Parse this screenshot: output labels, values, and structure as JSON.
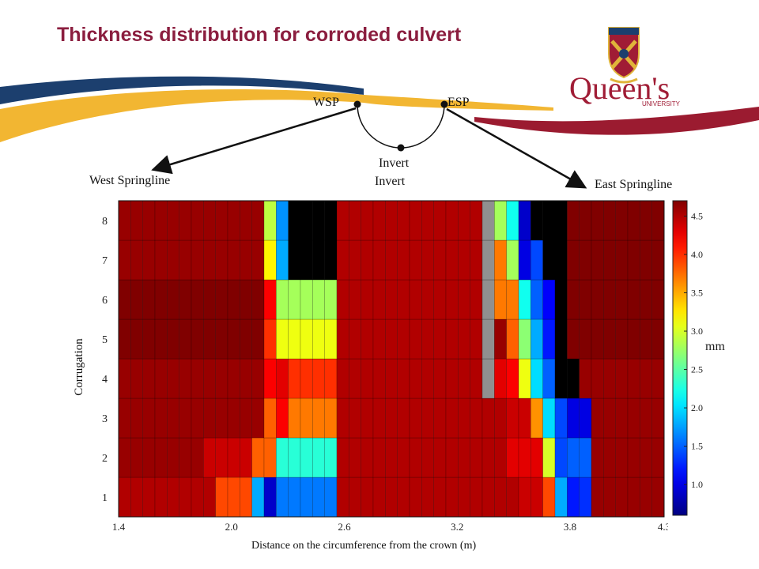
{
  "slide": {
    "title": "Thickness distribution for corroded culvert"
  },
  "logo": {
    "wordmark": "Queen's",
    "subtext": "UNIVERSITY"
  },
  "diagram": {
    "wsp_label": "WSP",
    "esp_label": "ESP",
    "invert_label": "Invert",
    "invert_label_2": "Invert",
    "west_label": "West Springline",
    "east_label": "East Springline"
  },
  "colors": {
    "brand_maroon": "#8b1e3f",
    "brand_navy": "#1c3f6e",
    "brand_gold": "#f2b632"
  },
  "chart_data": {
    "type": "heatmap",
    "title": "",
    "xlabel": "Distance on the circumference from the crown  (m)",
    "ylabel": "Corrugation",
    "xlim": [
      1.4,
      4.3
    ],
    "x_ticks": [
      "1.4",
      "2.0",
      "2.6",
      "3.2",
      "3.8",
      "4.3"
    ],
    "y_categories": [
      "1",
      "2",
      "3",
      "4",
      "5",
      "6",
      "7",
      "8"
    ],
    "colorbar": {
      "label": "mm",
      "range": [
        0.6,
        4.7
      ],
      "ticks": [
        "1.0",
        "1.5",
        "2.0",
        "2.5",
        "3.0",
        "3.5",
        "4.0",
        "4.5"
      ]
    },
    "columns": 45,
    "missing_value_note": "null = no data (black), -1 = grey cells",
    "rows_bottom_to_top": [
      [
        4.5,
        4.5,
        4.5,
        4.5,
        4.5,
        4.5,
        4.5,
        4.5,
        3.9,
        3.9,
        3.9,
        1.8,
        0.9,
        1.6,
        1.6,
        1.6,
        1.6,
        1.6,
        4.5,
        4.5,
        4.5,
        4.5,
        4.5,
        4.5,
        4.5,
        4.5,
        4.5,
        4.5,
        4.5,
        4.5,
        4.5,
        4.5,
        4.5,
        4.4,
        4.4,
        3.9,
        1.8,
        1.2,
        1.3,
        4.6,
        4.6,
        4.6,
        4.6,
        4.6,
        4.6
      ],
      [
        4.6,
        4.6,
        4.6,
        4.6,
        4.6,
        4.6,
        4.6,
        4.4,
        4.4,
        4.4,
        4.4,
        3.8,
        3.8,
        2.3,
        2.3,
        2.3,
        2.3,
        2.3,
        4.5,
        4.5,
        4.5,
        4.5,
        4.5,
        4.5,
        4.5,
        4.5,
        4.5,
        4.5,
        4.5,
        4.5,
        4.5,
        4.5,
        4.3,
        4.3,
        4.3,
        3.0,
        1.4,
        1.5,
        1.5,
        4.6,
        4.6,
        4.6,
        4.6,
        4.6,
        4.6
      ],
      [
        4.6,
        4.6,
        4.6,
        4.6,
        4.6,
        4.6,
        4.6,
        4.6,
        4.6,
        4.6,
        4.6,
        4.6,
        3.8,
        4.2,
        3.7,
        3.7,
        3.7,
        3.7,
        4.5,
        4.5,
        4.5,
        4.5,
        4.5,
        4.5,
        4.5,
        4.5,
        4.5,
        4.5,
        4.5,
        4.5,
        4.5,
        4.5,
        4.4,
        4.4,
        3.6,
        2.0,
        1.4,
        1.0,
        1.0,
        4.6,
        4.6,
        4.6,
        4.6,
        4.6,
        4.6
      ],
      [
        4.6,
        4.6,
        4.6,
        4.6,
        4.6,
        4.6,
        4.6,
        4.6,
        4.6,
        4.6,
        4.6,
        4.6,
        4.2,
        4.3,
        4.0,
        4.0,
        4.0,
        4.0,
        4.5,
        4.5,
        4.5,
        4.5,
        4.5,
        4.5,
        4.5,
        4.5,
        4.5,
        4.5,
        4.5,
        4.5,
        -1,
        4.3,
        4.2,
        3.1,
        2.0,
        1.5,
        null,
        null,
        4.6,
        4.6,
        4.6,
        4.6,
        4.6,
        4.6,
        4.6
      ],
      [
        4.7,
        4.7,
        4.7,
        4.7,
        4.7,
        4.7,
        4.7,
        4.7,
        4.7,
        4.7,
        4.7,
        4.7,
        4.0,
        3.1,
        3.1,
        3.1,
        3.1,
        3.1,
        4.5,
        4.5,
        4.5,
        4.5,
        4.5,
        4.5,
        4.5,
        4.5,
        4.5,
        4.5,
        4.5,
        4.5,
        -1,
        4.6,
        3.8,
        2.7,
        1.8,
        1.2,
        null,
        4.7,
        4.7,
        4.7,
        4.7,
        4.7,
        4.7,
        4.7,
        4.7
      ],
      [
        4.7,
        4.7,
        4.7,
        4.7,
        4.7,
        4.7,
        4.7,
        4.7,
        4.7,
        4.7,
        4.7,
        4.7,
        4.2,
        2.8,
        2.8,
        2.8,
        2.8,
        2.8,
        4.5,
        4.5,
        4.5,
        4.5,
        4.5,
        4.5,
        4.5,
        4.5,
        4.5,
        4.5,
        4.5,
        4.5,
        -1,
        3.7,
        3.7,
        2.2,
        1.5,
        1.1,
        null,
        4.7,
        4.7,
        4.7,
        4.7,
        4.7,
        4.7,
        4.7,
        4.7
      ],
      [
        4.6,
        4.6,
        4.6,
        4.6,
        4.6,
        4.6,
        4.6,
        4.6,
        4.6,
        4.6,
        4.6,
        4.6,
        3.2,
        1.8,
        null,
        null,
        null,
        null,
        4.5,
        4.5,
        4.5,
        4.5,
        4.5,
        4.5,
        4.5,
        4.5,
        4.5,
        4.5,
        4.5,
        4.5,
        -1,
        3.7,
        2.8,
        1.0,
        1.4,
        null,
        null,
        4.7,
        4.7,
        4.7,
        4.7,
        4.7,
        4.7,
        4.7,
        4.7
      ],
      [
        4.6,
        4.6,
        4.6,
        4.6,
        4.6,
        4.6,
        4.6,
        4.6,
        4.6,
        4.6,
        4.6,
        4.6,
        2.9,
        1.7,
        null,
        null,
        null,
        null,
        4.5,
        4.5,
        4.5,
        4.5,
        4.5,
        4.5,
        4.5,
        4.5,
        4.5,
        4.5,
        4.5,
        4.5,
        -1,
        2.8,
        2.2,
        0.9,
        null,
        null,
        null,
        4.7,
        4.7,
        4.7,
        4.7,
        4.7,
        4.7,
        4.7,
        4.7
      ]
    ]
  }
}
